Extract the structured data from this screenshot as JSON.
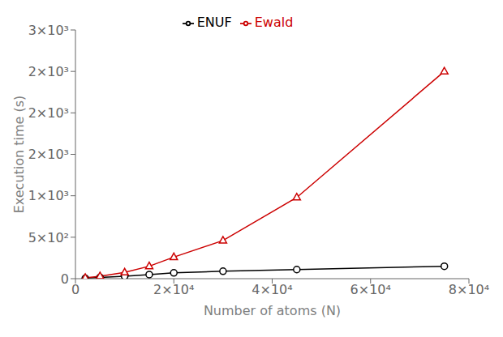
{
  "chart_data": {
    "type": "line",
    "xlabel": "Number of atoms (N)",
    "ylabel": "Execution time (s)",
    "x": [
      2000,
      5000,
      10000,
      15000,
      20000,
      30000,
      45000,
      75000
    ],
    "series": [
      {
        "name": "ENUF",
        "color": "#000000",
        "marker": "circle",
        "values": [
          5,
          15,
          30,
          50,
          70,
          90,
          110,
          150
        ]
      },
      {
        "name": "Ewald",
        "color": "#cc0000",
        "marker": "triangle",
        "values": [
          10,
          30,
          75,
          150,
          260,
          460,
          980,
          2500
        ]
      }
    ],
    "xlim": [
      0,
      80000
    ],
    "ylim": [
      0,
      3000
    ],
    "xticks": [
      0,
      {
        "value": 20000,
        "label": "2×10⁴"
      },
      {
        "value": 40000,
        "label": "4×10⁴"
      },
      {
        "value": 60000,
        "label": "6×10⁴"
      },
      {
        "value": 80000,
        "label": "8×10⁴"
      }
    ],
    "yticks": [
      0,
      {
        "value": 500,
        "label": "5×10²"
      },
      {
        "value": 1000,
        "label": "1×10³"
      },
      {
        "value": 1500,
        "label": "2×10³"
      },
      {
        "value": 2000,
        "label": "2×10³"
      },
      {
        "value": 2500,
        "label": "2×10³"
      },
      {
        "value": 3000,
        "label": "3×10³"
      }
    ],
    "grid": false,
    "legend": "upper center"
  }
}
